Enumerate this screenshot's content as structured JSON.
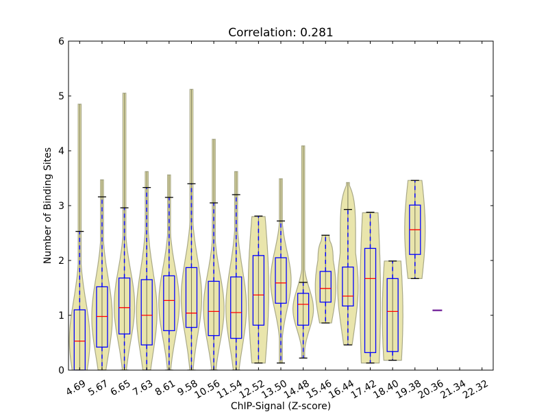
{
  "chart_data": {
    "type": "violin+box",
    "title": "Correlation: 0.281",
    "xlabel": "ChIP-Signal (Z-score)",
    "ylabel": "Number of Binding Sites",
    "ylim": [
      0,
      6
    ],
    "yticks": [
      "0",
      "1",
      "2",
      "3",
      "4",
      "5",
      "6"
    ],
    "grid": false,
    "categories": [
      "4.69",
      "5.67",
      "6.65",
      "7.63",
      "8.61",
      "9.58",
      "10.56",
      "11.54",
      "12.52",
      "13.50",
      "14.48",
      "15.46",
      "16.44",
      "17.42",
      "18.40",
      "19.38",
      "20.36",
      "21.34",
      "22.32"
    ],
    "boxes": [
      {
        "q1": 0.0,
        "median": 0.53,
        "q3": 1.1,
        "whislo": 0.0,
        "whishi": 2.53,
        "vmin": 0.0,
        "vmax": 4.85
      },
      {
        "q1": 0.42,
        "median": 0.98,
        "q3": 1.52,
        "whislo": 0.0,
        "whishi": 3.16,
        "vmin": 0.0,
        "vmax": 3.47
      },
      {
        "q1": 0.66,
        "median": 1.14,
        "q3": 1.68,
        "whislo": 0.0,
        "whishi": 2.96,
        "vmin": 0.0,
        "vmax": 5.05
      },
      {
        "q1": 0.46,
        "median": 1.0,
        "q3": 1.65,
        "whislo": 0.0,
        "whishi": 3.33,
        "vmin": 0.0,
        "vmax": 3.62
      },
      {
        "q1": 0.72,
        "median": 1.27,
        "q3": 1.72,
        "whislo": 0.0,
        "whishi": 3.15,
        "vmin": 0.0,
        "vmax": 3.56
      },
      {
        "q1": 0.78,
        "median": 1.04,
        "q3": 1.87,
        "whislo": 0.0,
        "whishi": 3.4,
        "vmin": 0.0,
        "vmax": 5.12
      },
      {
        "q1": 0.63,
        "median": 1.07,
        "q3": 1.62,
        "whislo": 0.0,
        "whishi": 3.05,
        "vmin": 0.0,
        "vmax": 4.21
      },
      {
        "q1": 0.58,
        "median": 1.05,
        "q3": 1.7,
        "whislo": 0.0,
        "whishi": 3.2,
        "vmin": 0.0,
        "vmax": 3.62
      },
      {
        "q1": 0.82,
        "median": 1.37,
        "q3": 2.09,
        "whislo": 0.13,
        "whishi": 2.81,
        "vmin": 0.13,
        "vmax": 2.8
      },
      {
        "q1": 1.22,
        "median": 1.59,
        "q3": 2.05,
        "whislo": 0.13,
        "whishi": 2.72,
        "vmin": 0.13,
        "vmax": 3.49
      },
      {
        "q1": 0.82,
        "median": 1.2,
        "q3": 1.4,
        "whislo": 0.22,
        "whishi": 1.6,
        "vmin": 0.22,
        "vmax": 4.09
      },
      {
        "q1": 1.24,
        "median": 1.49,
        "q3": 1.8,
        "whislo": 0.86,
        "whishi": 2.46,
        "vmin": 0.86,
        "vmax": 2.46
      },
      {
        "q1": 1.17,
        "median": 1.35,
        "q3": 1.88,
        "whislo": 0.46,
        "whishi": 2.93,
        "vmin": 0.46,
        "vmax": 3.42
      },
      {
        "q1": 0.32,
        "median": 1.67,
        "q3": 2.22,
        "whislo": 0.13,
        "whishi": 2.88,
        "vmin": 0.13,
        "vmax": 2.87
      },
      {
        "q1": 0.34,
        "median": 1.07,
        "q3": 1.67,
        "whislo": 0.18,
        "whishi": 1.99,
        "vmin": 0.18,
        "vmax": 1.99
      },
      {
        "q1": 2.11,
        "median": 2.56,
        "q3": 3.01,
        "whislo": 1.67,
        "whishi": 3.46,
        "vmin": 1.67,
        "vmax": 3.46
      },
      {
        "single": 1.09
      },
      null,
      null
    ],
    "colors": {
      "violin_fill": "#e8e4a8",
      "violin_edge": "#a8a888",
      "box": "#0000ff",
      "median": "#ff0000",
      "whisker": "#0000ff",
      "cap": "#000000",
      "single": "#7a2fa0"
    }
  }
}
